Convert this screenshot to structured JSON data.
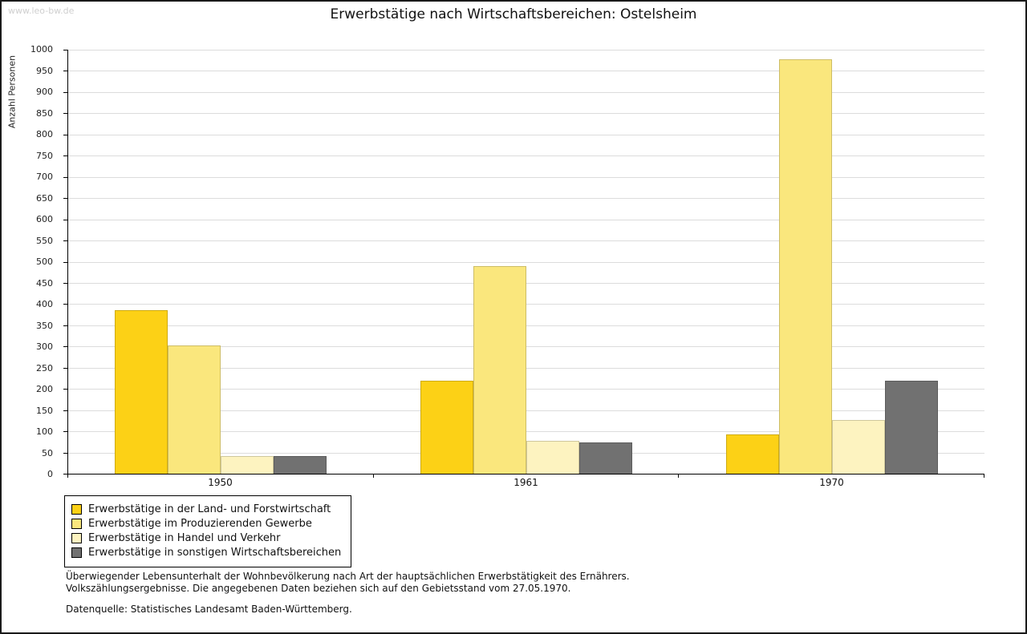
{
  "watermark": "www.leo-bw.de",
  "chart_data": {
    "type": "bar",
    "title": "Erwerbstätige nach Wirtschaftsbereichen: Ostelsheim",
    "xlabel": "",
    "ylabel": "Anzahl Personen",
    "categories": [
      "1950",
      "1961",
      "1970"
    ],
    "series": [
      {
        "name": "Erwerbstätige in der Land- und Forstwirtschaft",
        "color": "#fcd116",
        "values": [
          385,
          219,
          93
        ]
      },
      {
        "name": "Erwerbstätige im Produzierenden Gewerbe",
        "color": "#fae77d",
        "values": [
          303,
          489,
          977
        ]
      },
      {
        "name": "Erwerbstätige in Handel und Verkehr",
        "color": "#fdf3c0",
        "values": [
          42,
          77,
          127
        ]
      },
      {
        "name": "Erwerbstätige in sonstigen Wirtschaftsbereichen",
        "color": "#717171",
        "values": [
          42,
          74,
          219
        ]
      }
    ],
    "ylim": [
      0,
      1000
    ],
    "ytick_step": 50,
    "grid": true,
    "legend_position": "bottom-left"
  },
  "footnotes": {
    "line1": "Überwiegender Lebensunterhalt der Wohnbevölkerung nach Art der hauptsächlichen Erwerbstätigkeit des Ernährers.",
    "line2": "Volkszählungsergebnisse. Die angegebenen Daten beziehen sich auf den Gebietsstand vom 27.05.1970.",
    "source": "Datenquelle: Statistisches Landesamt Baden-Württemberg."
  }
}
